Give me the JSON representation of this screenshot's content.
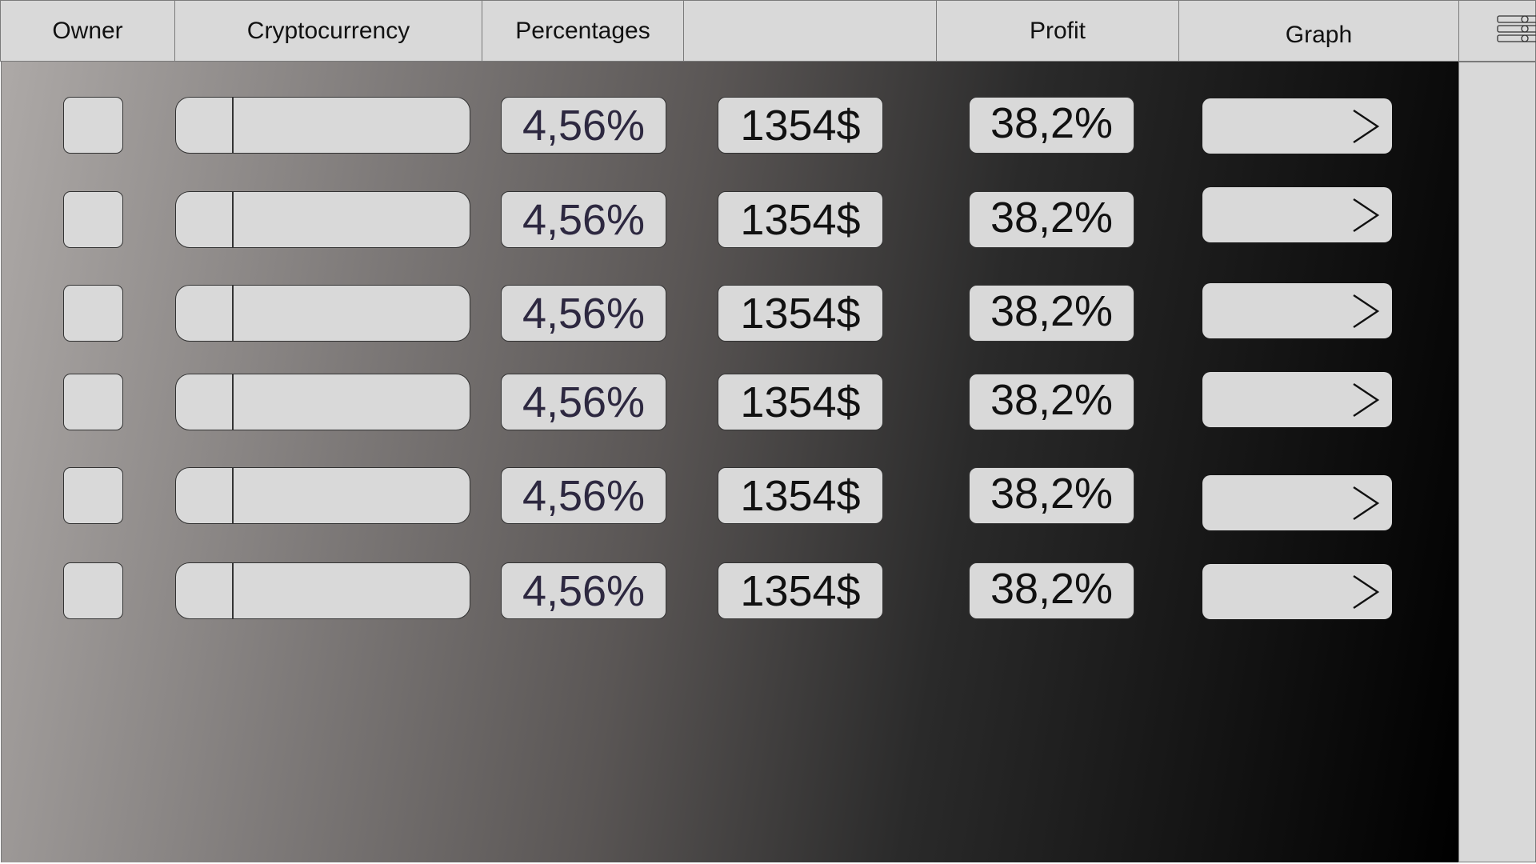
{
  "header": {
    "owner": "Owner",
    "cryptocurrency": "Cryptocurrency",
    "percentages": "Percentages",
    "amount": "",
    "profit": "Profit",
    "graph": "Graph"
  },
  "rows": [
    {
      "percentage": "4,56%",
      "amount": "1354$",
      "profit": "38,2%"
    },
    {
      "percentage": "4,56%",
      "amount": "1354$",
      "profit": "38,2%"
    },
    {
      "percentage": "4,56%",
      "amount": "1354$",
      "profit": "38,2%"
    },
    {
      "percentage": "4,56%",
      "amount": "1354$",
      "profit": "38,2%"
    },
    {
      "percentage": "4,56%",
      "amount": "1354$",
      "profit": "38,2%"
    },
    {
      "percentage": "4,56%",
      "amount": "1354$",
      "profit": "38,2%"
    }
  ],
  "icons": {
    "menu": "menu-list-icon",
    "graph": "chevron-right-icon"
  },
  "colors": {
    "panel": "#d9d9d9",
    "percentage_text": "#2d2840",
    "text": "#111111",
    "gradient_start": "#ada9a7",
    "gradient_end": "#000000"
  }
}
